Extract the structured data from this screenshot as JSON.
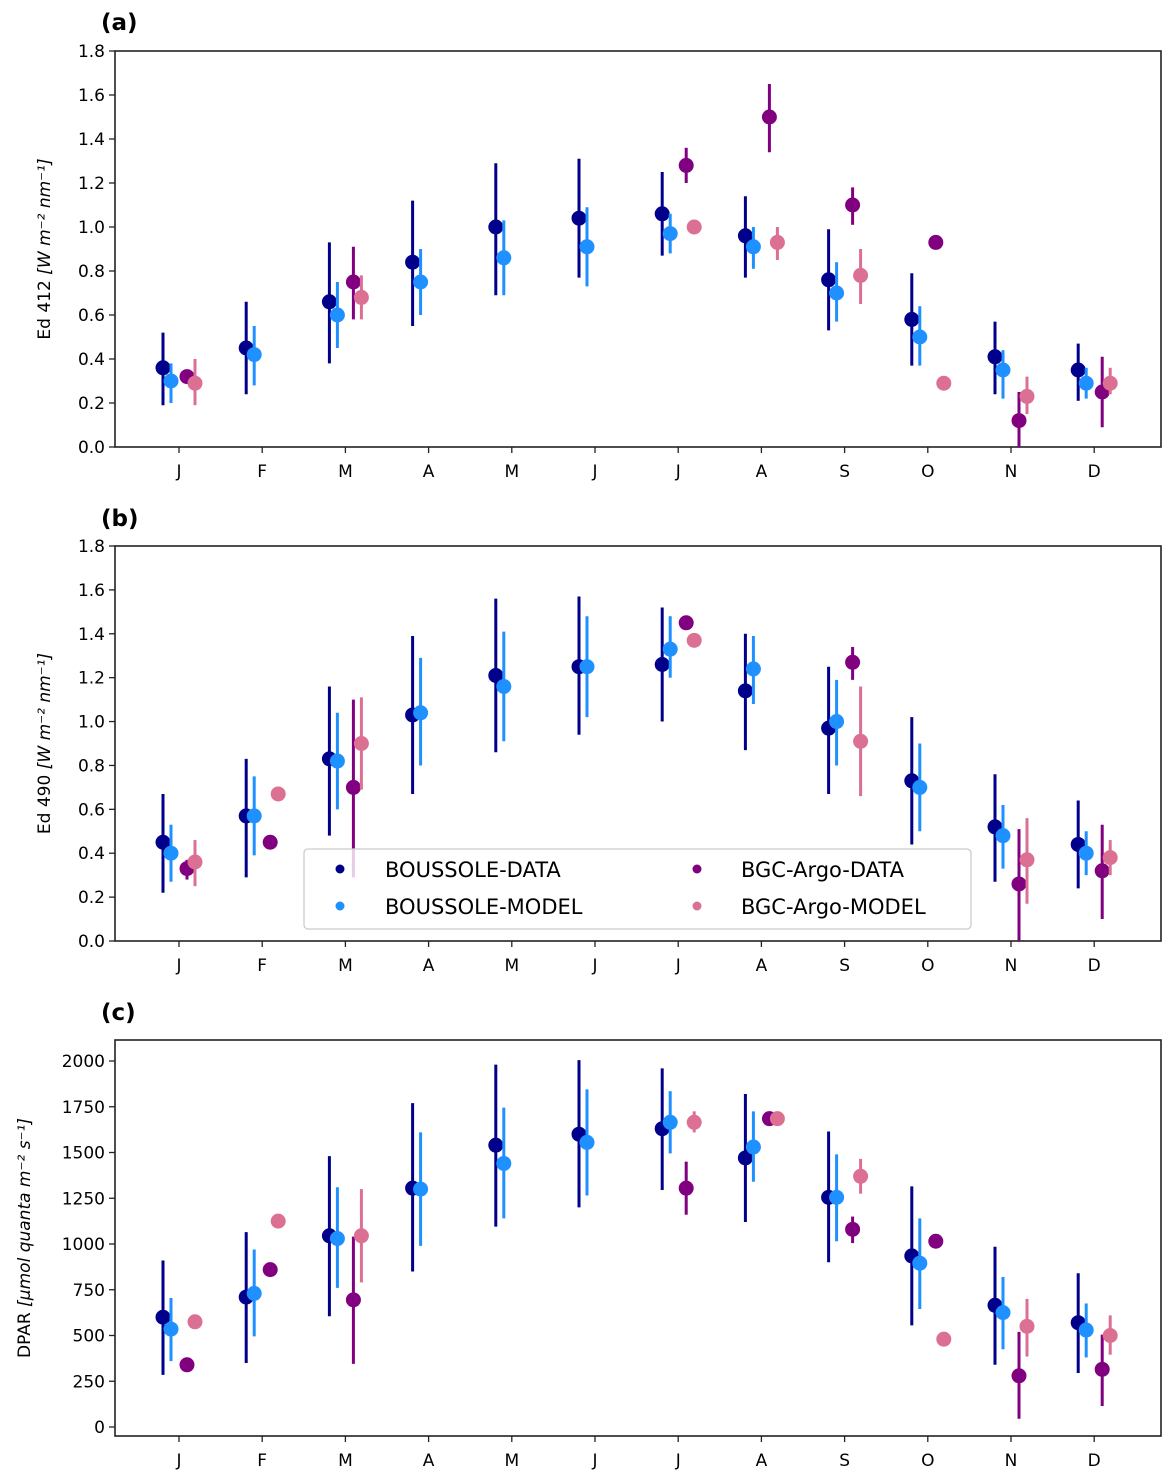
{
  "figure": {
    "legend": {
      "placement": "lower-center (panel b)",
      "entries": [
        {
          "key": "boussole_data",
          "label": "BOUSSOLE-DATA",
          "color": "#00008b"
        },
        {
          "key": "boussole_model",
          "label": "BOUSSOLE-MODEL",
          "color": "#1e90ff"
        },
        {
          "key": "argo_data",
          "label": "BGC-Argo-DATA",
          "color": "#800080"
        },
        {
          "key": "argo_model",
          "label": "BGC-Argo-MODEL",
          "color": "#db7093"
        }
      ]
    }
  },
  "chart_data": [
    {
      "type": "scatter",
      "panel_label": "(a)",
      "title": "",
      "xlabel": "",
      "ylabel": "Ed 412 [W m^-2 nm^-1]",
      "ylabel_main": "Ed 412 ",
      "ylabel_units": "[W m⁻² nm⁻¹]",
      "categories": [
        "J",
        "F",
        "M",
        "A",
        "M",
        "J",
        "J",
        "A",
        "S",
        "O",
        "N",
        "D"
      ],
      "ylim": [
        0.0,
        1.8
      ],
      "yticks": [
        0.0,
        0.2,
        0.4,
        0.6,
        0.8,
        1.0,
        1.2,
        1.4,
        1.6,
        1.8
      ],
      "ytick_labels": [
        "0.0",
        "0.2",
        "0.4",
        "0.6",
        "0.8",
        "1.0",
        "1.2",
        "1.4",
        "1.6",
        "1.8"
      ],
      "grid": false,
      "series": [
        {
          "name": "BOUSSOLE-DATA",
          "key": "boussole_data",
          "values": [
            0.36,
            0.45,
            0.66,
            0.84,
            1.0,
            1.04,
            1.06,
            0.96,
            0.76,
            0.58,
            0.41,
            0.35
          ],
          "err_low": [
            0.19,
            0.24,
            0.38,
            0.55,
            0.69,
            0.77,
            0.87,
            0.77,
            0.53,
            0.37,
            0.24,
            0.21
          ],
          "err_high": [
            0.52,
            0.66,
            0.93,
            1.12,
            1.29,
            1.31,
            1.25,
            1.14,
            0.99,
            0.79,
            0.57,
            0.47
          ]
        },
        {
          "name": "BOUSSOLE-MODEL",
          "key": "boussole_model",
          "values": [
            0.3,
            0.42,
            0.6,
            0.75,
            0.86,
            0.91,
            0.97,
            0.91,
            0.7,
            0.5,
            0.35,
            0.29
          ],
          "err_low": [
            0.2,
            0.28,
            0.45,
            0.6,
            0.69,
            0.73,
            0.88,
            0.81,
            0.57,
            0.37,
            0.22,
            0.22
          ],
          "err_high": [
            0.38,
            0.55,
            0.75,
            0.9,
            1.03,
            1.09,
            1.06,
            1.0,
            0.84,
            0.64,
            0.44,
            0.36
          ]
        },
        {
          "name": "BGC-Argo-DATA",
          "key": "argo_data",
          "values": [
            0.32,
            null,
            0.75,
            null,
            null,
            null,
            1.28,
            1.5,
            1.1,
            0.93,
            0.12,
            0.25
          ],
          "err_low": [
            0.32,
            null,
            0.58,
            null,
            null,
            null,
            1.2,
            1.34,
            1.01,
            0.93,
            0.0,
            0.09
          ],
          "err_high": [
            0.32,
            null,
            0.91,
            null,
            null,
            null,
            1.36,
            1.65,
            1.18,
            0.93,
            0.25,
            0.41
          ]
        },
        {
          "name": "BGC-Argo-MODEL",
          "key": "argo_model",
          "values": [
            0.29,
            null,
            0.68,
            null,
            null,
            null,
            1.0,
            0.93,
            0.78,
            0.29,
            0.23,
            0.29
          ],
          "err_low": [
            0.19,
            null,
            0.58,
            null,
            null,
            null,
            1.0,
            0.85,
            0.65,
            0.29,
            0.15,
            0.24
          ],
          "err_high": [
            0.4,
            null,
            0.78,
            null,
            null,
            null,
            1.0,
            1.0,
            0.9,
            0.29,
            0.32,
            0.36
          ]
        }
      ]
    },
    {
      "type": "scatter",
      "panel_label": "(b)",
      "title": "",
      "xlabel": "",
      "ylabel": "Ed 490 [W m^-2 nm^-1]",
      "ylabel_main": "Ed 490 ",
      "ylabel_units": "[W m⁻² nm⁻¹]",
      "categories": [
        "J",
        "F",
        "M",
        "A",
        "M",
        "J",
        "J",
        "A",
        "S",
        "O",
        "N",
        "D"
      ],
      "ylim": [
        0.0,
        1.8
      ],
      "yticks": [
        0.0,
        0.2,
        0.4,
        0.6,
        0.8,
        1.0,
        1.2,
        1.4,
        1.6,
        1.8
      ],
      "ytick_labels": [
        "0.0",
        "0.2",
        "0.4",
        "0.6",
        "0.8",
        "1.0",
        "1.2",
        "1.4",
        "1.6",
        "1.8"
      ],
      "grid": false,
      "series": [
        {
          "name": "BOUSSOLE-DATA",
          "key": "boussole_data",
          "values": [
            0.45,
            0.57,
            0.83,
            1.03,
            1.21,
            1.25,
            1.26,
            1.14,
            0.97,
            0.73,
            0.52,
            0.44
          ],
          "err_low": [
            0.22,
            0.29,
            0.48,
            0.67,
            0.86,
            0.94,
            1.0,
            0.87,
            0.67,
            0.44,
            0.27,
            0.24
          ],
          "err_high": [
            0.67,
            0.83,
            1.16,
            1.39,
            1.56,
            1.57,
            1.52,
            1.4,
            1.25,
            1.02,
            0.76,
            0.64
          ]
        },
        {
          "name": "BOUSSOLE-MODEL",
          "key": "boussole_model",
          "values": [
            0.4,
            0.57,
            0.82,
            1.04,
            1.16,
            1.25,
            1.33,
            1.24,
            1.0,
            0.7,
            0.48,
            0.4
          ],
          "err_low": [
            0.27,
            0.39,
            0.6,
            0.8,
            0.91,
            1.02,
            1.2,
            1.08,
            0.8,
            0.5,
            0.33,
            0.3
          ],
          "err_high": [
            0.53,
            0.75,
            1.04,
            1.29,
            1.41,
            1.48,
            1.48,
            1.39,
            1.19,
            0.9,
            0.62,
            0.5
          ]
        },
        {
          "name": "BGC-Argo-DATA",
          "key": "argo_data",
          "values": [
            0.33,
            0.45,
            0.7,
            null,
            null,
            null,
            1.45,
            null,
            1.27,
            null,
            0.26,
            0.32
          ],
          "err_low": [
            0.28,
            0.45,
            0.29,
            null,
            null,
            null,
            1.45,
            null,
            1.19,
            null,
            0.0,
            0.1
          ],
          "err_high": [
            0.37,
            0.45,
            1.1,
            null,
            null,
            null,
            1.45,
            null,
            1.34,
            null,
            0.51,
            0.53
          ]
        },
        {
          "name": "BGC-Argo-MODEL",
          "key": "argo_model",
          "values": [
            0.36,
            0.67,
            0.9,
            null,
            null,
            null,
            1.37,
            null,
            0.91,
            null,
            0.37,
            0.38
          ],
          "err_low": [
            0.25,
            0.67,
            0.69,
            null,
            null,
            null,
            1.37,
            null,
            0.66,
            null,
            0.17,
            0.3
          ],
          "err_high": [
            0.46,
            0.67,
            1.11,
            null,
            null,
            null,
            1.37,
            null,
            1.16,
            null,
            0.56,
            0.46
          ]
        }
      ]
    },
    {
      "type": "scatter",
      "panel_label": "(c)",
      "title": "",
      "xlabel": "",
      "ylabel": "DPAR [µmol quanta m^-2 s^-1]",
      "ylabel_main": "DPAR  ",
      "ylabel_units": "[µmol quanta m⁻² s⁻¹]",
      "categories": [
        "J",
        "F",
        "M",
        "A",
        "M",
        "J",
        "J",
        "A",
        "S",
        "O",
        "N",
        "D"
      ],
      "ylim": [
        -50,
        2100
      ],
      "yticks": [
        0,
        250,
        500,
        750,
        1000,
        1250,
        1500,
        1750,
        2000
      ],
      "ytick_labels": [
        "0",
        "250",
        "500",
        "750",
        "1000",
        "1250",
        "1500",
        "1750",
        "2000"
      ],
      "grid": false,
      "series": [
        {
          "name": "BOUSSOLE-DATA",
          "key": "boussole_data",
          "values": [
            600,
            710,
            1045,
            1305,
            1540,
            1600,
            1630,
            1470,
            1255,
            935,
            665,
            570
          ],
          "err_low": [
            285,
            350,
            605,
            850,
            1095,
            1200,
            1295,
            1120,
            900,
            555,
            340,
            295
          ],
          "err_high": [
            910,
            1065,
            1480,
            1770,
            1980,
            2005,
            1960,
            1820,
            1615,
            1315,
            985,
            840
          ]
        },
        {
          "name": "BOUSSOLE-MODEL",
          "key": "boussole_model",
          "values": [
            535,
            730,
            1030,
            1300,
            1440,
            1555,
            1665,
            1530,
            1255,
            895,
            625,
            530
          ],
          "err_low": [
            360,
            495,
            760,
            990,
            1140,
            1265,
            1495,
            1340,
            1015,
            645,
            425,
            380
          ],
          "err_high": [
            705,
            970,
            1310,
            1610,
            1745,
            1845,
            1835,
            1725,
            1490,
            1140,
            820,
            675
          ]
        },
        {
          "name": "BGC-Argo-DATA",
          "key": "argo_data",
          "values": [
            340,
            860,
            695,
            null,
            null,
            null,
            1305,
            1685,
            1080,
            1015,
            280,
            315
          ],
          "err_low": [
            340,
            860,
            345,
            null,
            null,
            null,
            1160,
            1685,
            1005,
            1015,
            45,
            115
          ],
          "err_high": [
            340,
            860,
            1040,
            null,
            null,
            null,
            1450,
            1685,
            1150,
            1015,
            520,
            505
          ]
        },
        {
          "name": "BGC-Argo-MODEL",
          "key": "argo_model",
          "values": [
            575,
            1125,
            1045,
            null,
            null,
            null,
            1665,
            1685,
            1370,
            480,
            550,
            500
          ],
          "err_low": [
            575,
            1125,
            790,
            null,
            null,
            null,
            1610,
            1685,
            1275,
            480,
            385,
            395
          ],
          "err_high": [
            575,
            1125,
            1300,
            null,
            null,
            null,
            1725,
            1685,
            1465,
            480,
            700,
            610
          ]
        }
      ]
    }
  ]
}
